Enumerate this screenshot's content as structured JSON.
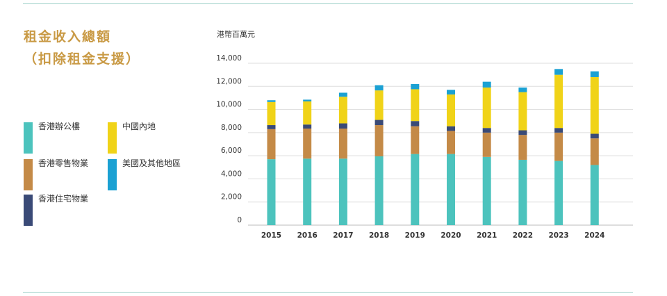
{
  "title_line1": "租金收入總額",
  "title_line2": "（扣除租金支援）",
  "unit": "港幣百萬元",
  "legend": [
    {
      "label": "香港辦公樓",
      "color": "#4cc3bd"
    },
    {
      "label": "中國內地",
      "color": "#f0d318"
    },
    {
      "label": "香港零售物業",
      "color": "#c48a47"
    },
    {
      "label": "美國及其他地區",
      "color": "#1ba1d3"
    },
    {
      "label": "香港住宅物業",
      "color": "#3a4a77"
    }
  ],
  "chart_data": {
    "type": "bar",
    "stacked": true,
    "categories": [
      "2015",
      "2016",
      "2017",
      "2018",
      "2019",
      "2020",
      "2021",
      "2022",
      "2023",
      "2024"
    ],
    "series": [
      {
        "name": "香港辦公樓",
        "color": "#4cc3bd",
        "values": [
          5700,
          5750,
          5750,
          5950,
          6150,
          6150,
          5900,
          5650,
          5550,
          5200
        ]
      },
      {
        "name": "香港零售物業",
        "color": "#c48a47",
        "values": [
          2600,
          2600,
          2600,
          2700,
          2400,
          2000,
          2100,
          2150,
          2450,
          2300
        ]
      },
      {
        "name": "香港住宅物業",
        "color": "#3a4a77",
        "values": [
          350,
          350,
          450,
          450,
          450,
          400,
          400,
          400,
          400,
          400
        ]
      },
      {
        "name": "中國內地",
        "color": "#f0d318",
        "values": [
          2000,
          2000,
          2300,
          2550,
          2750,
          2750,
          3500,
          3300,
          4600,
          4900
        ]
      },
      {
        "name": "美國及其他地區",
        "color": "#1ba1d3",
        "values": [
          150,
          150,
          350,
          450,
          450,
          400,
          500,
          400,
          500,
          500
        ]
      }
    ],
    "ylim": [
      0,
      14000
    ],
    "yticks": [
      "0",
      "2,000",
      "4,000",
      "6,000",
      "8,000",
      "10,000",
      "12,000",
      "14,000"
    ],
    "ytick_values": [
      0,
      2000,
      4000,
      6000,
      8000,
      10000,
      12000,
      14000
    ],
    "grid": true
  }
}
